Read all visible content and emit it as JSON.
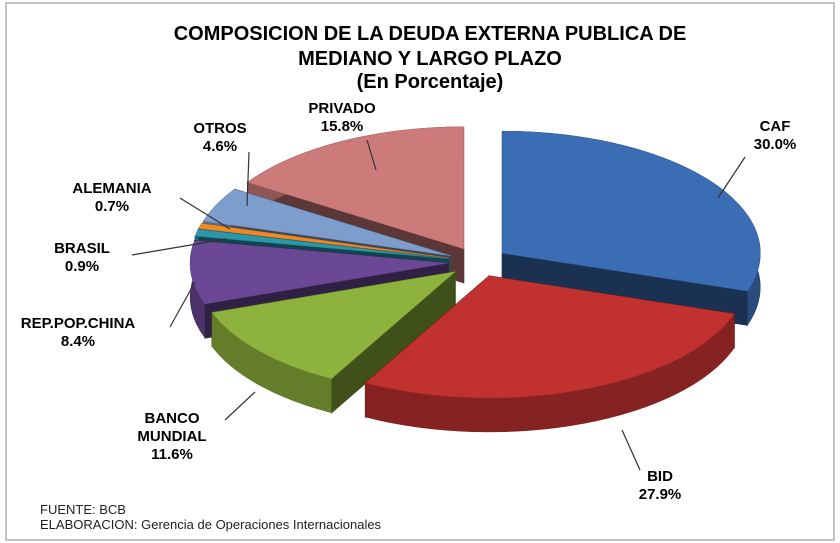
{
  "chart_data": {
    "type": "pie",
    "title": [
      "COMPOSICION DE LA DEUDA EXTERNA PUBLICA DE",
      "MEDIANO Y LARGO PLAZO"
    ],
    "subtitle": "(En Porcentaje)",
    "categories": [
      "CAF",
      "BID",
      "BANCO MUNDIAL",
      "REP.POP.CHINA",
      "BRASIL",
      "ALEMANIA",
      "OTROS",
      "PRIVADO"
    ],
    "values": [
      30.0,
      27.9,
      11.6,
      8.4,
      0.9,
      0.7,
      4.6,
      15.8
    ],
    "value_labels": [
      "30.0%",
      "27.9%",
      "11.6%",
      "8.4%",
      "0.9%",
      "0.7%",
      "4.6%",
      "15.8%"
    ],
    "colors": [
      "#3a6db3",
      "#c0312f",
      "#8db23d",
      "#6b4896",
      "#2a97ad",
      "#ee8a26",
      "#7d9dcd",
      "#cd7b7a"
    ],
    "notes": [
      "FUENTE: BCB",
      "ELABORACION: Gerencia de Operaciones Internacionales"
    ]
  }
}
